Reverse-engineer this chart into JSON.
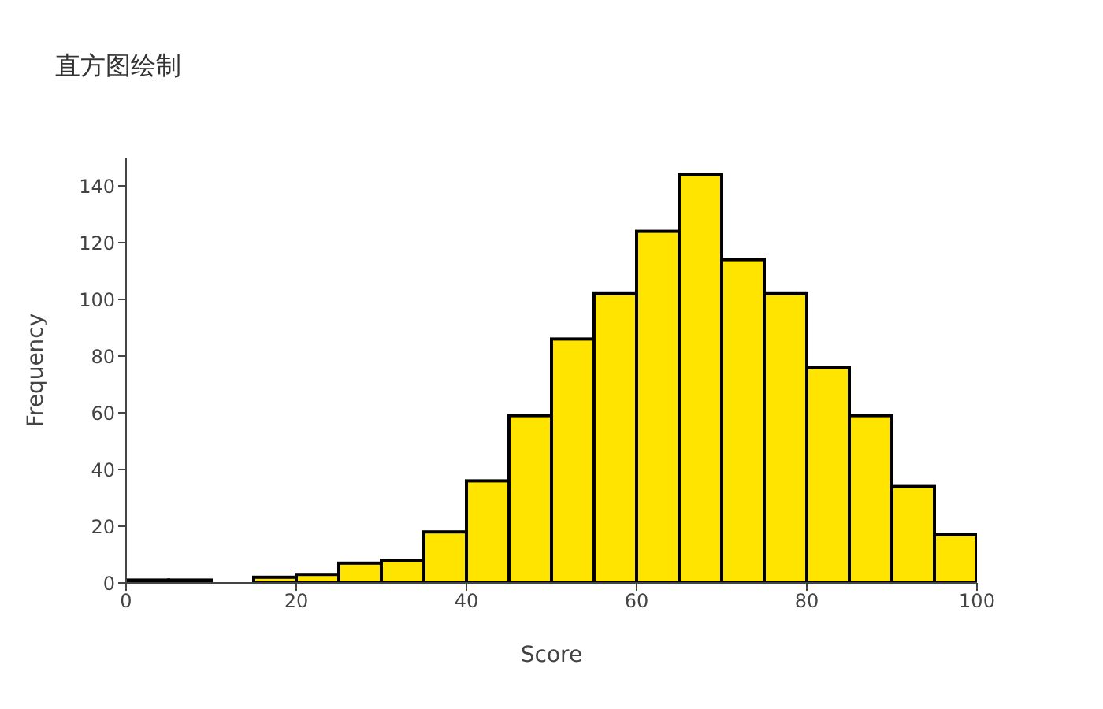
{
  "chart_data": {
    "type": "histogram",
    "title": "直方图绘制",
    "xlabel": "Score",
    "ylabel": "Frequency",
    "bins": [
      0,
      5,
      10,
      15,
      20,
      25,
      30,
      35,
      40,
      45,
      50,
      55,
      60,
      65,
      70,
      75,
      80,
      85,
      90,
      95,
      100
    ],
    "values": [
      1,
      1,
      0,
      2,
      3,
      7,
      8,
      18,
      36,
      59,
      86,
      102,
      124,
      144,
      114,
      102,
      76,
      59,
      34,
      17
    ],
    "color": "#ffe400",
    "xlim": [
      0,
      100
    ],
    "xticks": [
      0,
      20,
      40,
      60,
      80,
      100
    ],
    "ylim": [
      0,
      150
    ],
    "yticks": [
      0,
      20,
      40,
      60,
      80,
      100,
      120,
      140
    ],
    "grid": false,
    "legend": false
  }
}
